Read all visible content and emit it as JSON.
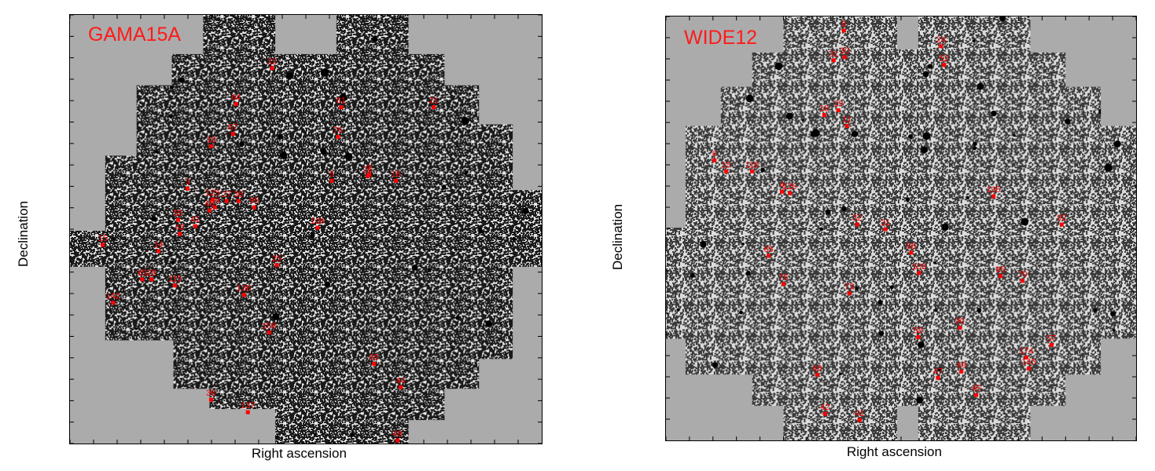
{
  "colors": {
    "mask": "#ababab",
    "source": "#ff0000",
    "axis": "#000000"
  },
  "panels": [
    {
      "title": "GAMA15A",
      "xlabel": "Right ascension",
      "ylabel": "Declination",
      "sources": [
        "22",
        "64",
        "81",
        "21",
        "67",
        "76",
        "18",
        "16",
        "5",
        "26",
        "3",
        "27",
        "38",
        "69",
        "95",
        "109",
        "55",
        "15",
        "14",
        "85",
        "28",
        "115",
        "25",
        "136",
        "142",
        "158",
        "65",
        "44",
        "36",
        "137",
        "49",
        "43",
        "41",
        "7",
        "125",
        "40"
      ]
    },
    {
      "title": "WIDE12",
      "xlabel": "Right ascension",
      "ylabel": "Declination",
      "sources": [
        "8",
        "30",
        "31",
        "24",
        "52",
        "18",
        "19",
        "11",
        "6",
        "15",
        "119",
        "4",
        "126",
        "195",
        "32",
        "31",
        "92",
        "65",
        "86",
        "100",
        "85",
        "79",
        "75",
        "73",
        "90",
        "174",
        "145",
        "58",
        "57",
        "48",
        "47",
        "49",
        "45",
        "42",
        "41"
      ]
    }
  ]
}
